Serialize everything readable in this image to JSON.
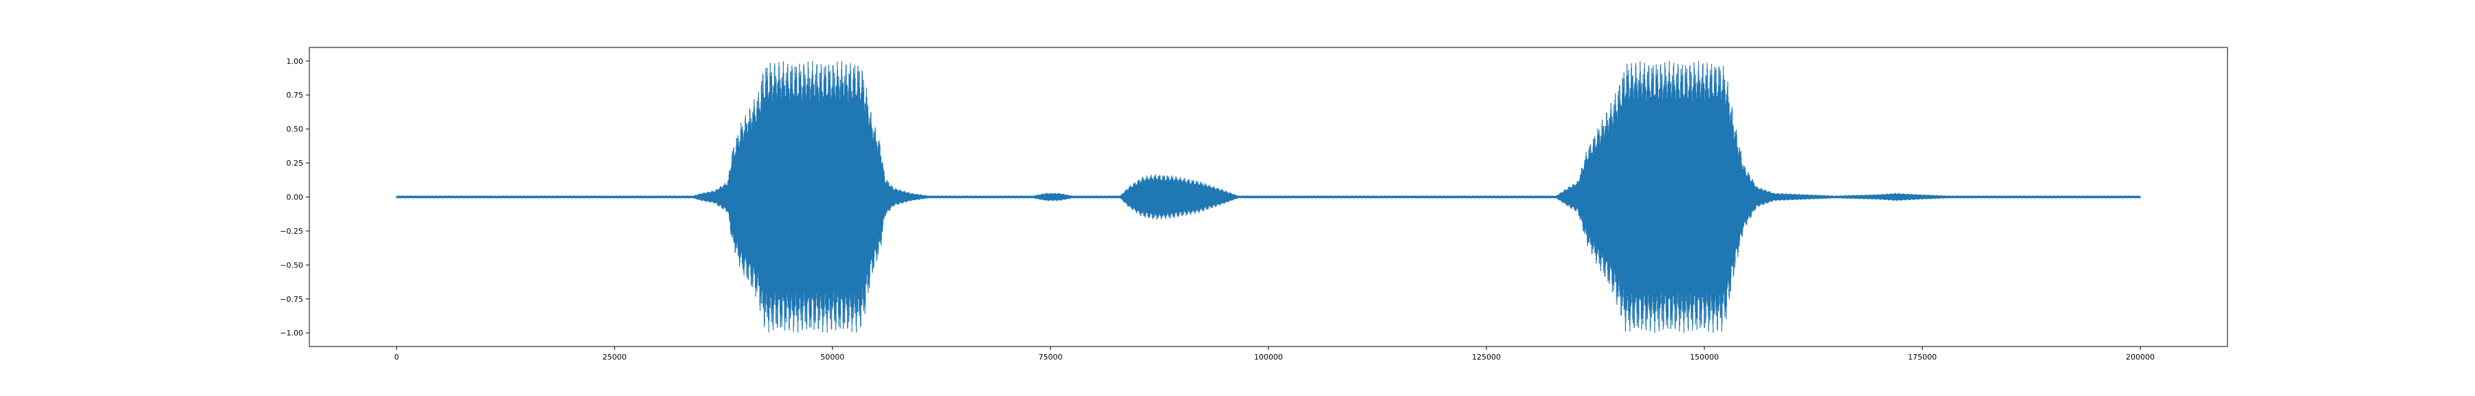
{
  "chart_data": {
    "type": "line",
    "title": "",
    "xlabel": "",
    "ylabel": "",
    "xlim": [
      -10000,
      210000
    ],
    "ylim": [
      -1.1,
      1.1
    ],
    "x_ticks": [
      0,
      25000,
      50000,
      75000,
      100000,
      125000,
      150000,
      175000,
      200000
    ],
    "x_tick_labels": [
      "0",
      "25000",
      "50000",
      "75000",
      "100000",
      "125000",
      "150000",
      "175000",
      "200000"
    ],
    "y_ticks": [
      -1.0,
      -0.75,
      -0.5,
      -0.25,
      0.0,
      0.25,
      0.5,
      0.75,
      1.0
    ],
    "y_tick_labels": [
      "−1.00",
      "−0.75",
      "−0.50",
      "−0.25",
      "0.00",
      "0.25",
      "0.50",
      "0.75",
      "1.00"
    ],
    "grid": false,
    "legend": false,
    "series": [
      {
        "color": "#1f77b4",
        "x_range": [
          0,
          200000
        ],
        "envelope": [
          [
            0,
            0.01
          ],
          [
            34000,
            0.01
          ],
          [
            35000,
            0.03
          ],
          [
            36500,
            0.05
          ],
          [
            38000,
            0.12
          ],
          [
            38500,
            0.35
          ],
          [
            39500,
            0.55
          ],
          [
            40500,
            0.66
          ],
          [
            41500,
            0.78
          ],
          [
            42000,
            0.95
          ],
          [
            42500,
            1.0
          ],
          [
            53000,
            1.0
          ],
          [
            53500,
            0.95
          ],
          [
            54500,
            0.6
          ],
          [
            55500,
            0.4
          ],
          [
            56000,
            0.15
          ],
          [
            57000,
            0.07
          ],
          [
            59000,
            0.03
          ],
          [
            61000,
            0.01
          ],
          [
            73000,
            0.01
          ],
          [
            74500,
            0.03
          ],
          [
            76000,
            0.03
          ],
          [
            77500,
            0.01
          ],
          [
            83000,
            0.01
          ],
          [
            84000,
            0.08
          ],
          [
            85500,
            0.15
          ],
          [
            87000,
            0.17
          ],
          [
            89000,
            0.16
          ],
          [
            92000,
            0.12
          ],
          [
            95000,
            0.05
          ],
          [
            96500,
            0.01
          ],
          [
            133000,
            0.01
          ],
          [
            134500,
            0.08
          ],
          [
            135500,
            0.12
          ],
          [
            136500,
            0.35
          ],
          [
            137500,
            0.48
          ],
          [
            138500,
            0.6
          ],
          [
            139500,
            0.72
          ],
          [
            140500,
            0.9
          ],
          [
            141000,
            1.0
          ],
          [
            152000,
            1.0
          ],
          [
            152500,
            0.92
          ],
          [
            153500,
            0.55
          ],
          [
            154500,
            0.25
          ],
          [
            156000,
            0.08
          ],
          [
            158000,
            0.03
          ],
          [
            165000,
            0.01
          ],
          [
            170000,
            0.02
          ],
          [
            172000,
            0.03
          ],
          [
            174500,
            0.02
          ],
          [
            178000,
            0.01
          ],
          [
            200000,
            0.01
          ]
        ]
      }
    ]
  }
}
